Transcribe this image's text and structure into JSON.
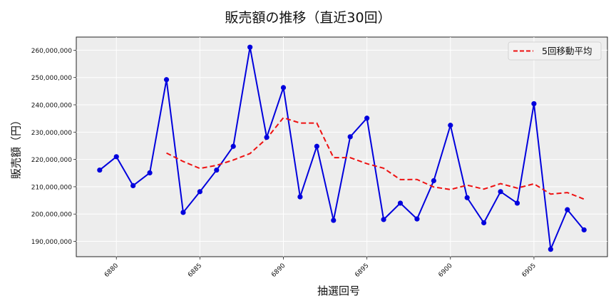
{
  "chart_data": {
    "type": "line",
    "title": "販売額の推移（直近30回）",
    "xlabel": "抽選回号",
    "ylabel": "販売額（円）",
    "x": [
      6879,
      6880,
      6881,
      6882,
      6883,
      6884,
      6885,
      6886,
      6887,
      6888,
      6889,
      6890,
      6891,
      6892,
      6893,
      6894,
      6895,
      6896,
      6897,
      6898,
      6899,
      6900,
      6901,
      6902,
      6903,
      6904,
      6905,
      6906,
      6907,
      6908
    ],
    "series": [
      {
        "name": "販売額",
        "color": "#0000dd",
        "style": "solid-with-markers",
        "values": [
          216100000,
          221000000,
          210400000,
          215100000,
          249200000,
          200600000,
          208200000,
          216100000,
          224800000,
          261100000,
          228100000,
          246300000,
          206300000,
          224800000,
          197700000,
          228300000,
          235100000,
          198000000,
          204000000,
          198200000,
          212200000,
          232500000,
          206000000,
          196800000,
          208200000,
          204000000,
          240400000,
          187100000,
          201600000,
          194200000
        ]
      },
      {
        "name": "5回移動平均",
        "color": "#ee1111",
        "style": "dashed",
        "values": [
          null,
          null,
          null,
          null,
          222360000,
          219260000,
          216700000,
          217840000,
          219780000,
          222160000,
          227660000,
          235280000,
          233320000,
          233320000,
          220640000,
          220640000,
          218440000,
          216780000,
          212620000,
          212660000,
          209900000,
          208980000,
          210580000,
          209140000,
          211140000,
          209500000,
          211080000,
          207300000,
          207860000,
          205460000
        ]
      }
    ],
    "xticks": [
      6880,
      6885,
      6890,
      6895,
      6900,
      6905
    ],
    "yticks": [
      190000000,
      200000000,
      210000000,
      220000000,
      230000000,
      240000000,
      250000000,
      260000000
    ],
    "ytick_labels": [
      "190,000,000",
      "200,000,000",
      "210,000,000",
      "220,000,000",
      "230,000,000",
      "240,000,000",
      "250,000,000",
      "260,000,000"
    ],
    "xlim": [
      6877.6,
      6909.4
    ],
    "ylim": [
      184400000,
      264800000
    ],
    "grid": true,
    "legend": {
      "position": "upper right",
      "entries": [
        "5回移動平均"
      ]
    }
  },
  "title": "販売額の推移（直近30回）",
  "xlabel": "抽選回号",
  "ylabel": "販売額（円）",
  "legend_label": "5回移動平均"
}
